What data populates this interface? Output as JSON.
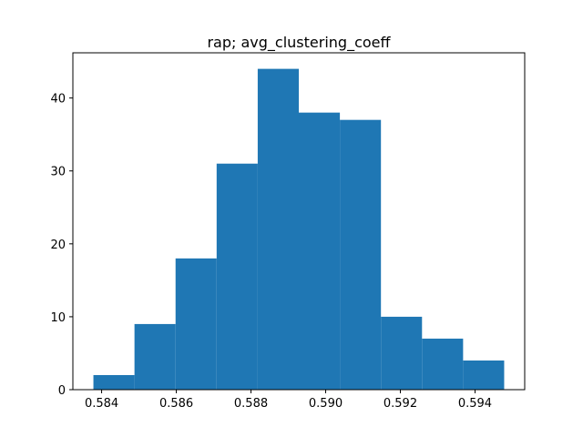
{
  "chart_data": {
    "type": "bar",
    "title": "rap; avg_clustering_coeff",
    "xlabel": "",
    "ylabel": "",
    "bin_edges": [
      0.58378,
      0.58488,
      0.58598,
      0.58708,
      0.58818,
      0.58928,
      0.59038,
      0.59148,
      0.59258,
      0.59368,
      0.59478
    ],
    "values": [
      2,
      9,
      18,
      31,
      44,
      38,
      37,
      10,
      7,
      4
    ],
    "xlim": [
      0.58323,
      0.59533
    ],
    "ylim": [
      0,
      46.2
    ],
    "xticks": [
      0.584,
      0.586,
      0.588,
      0.59,
      0.592,
      0.594
    ],
    "xtick_labels": [
      "0.584",
      "0.586",
      "0.588",
      "0.590",
      "0.592",
      "0.594"
    ],
    "yticks": [
      0,
      10,
      20,
      30,
      40
    ],
    "ytick_labels": [
      "0",
      "10",
      "20",
      "30",
      "40"
    ],
    "bar_color": "#1f77b4",
    "grid": false,
    "legend": "none"
  }
}
